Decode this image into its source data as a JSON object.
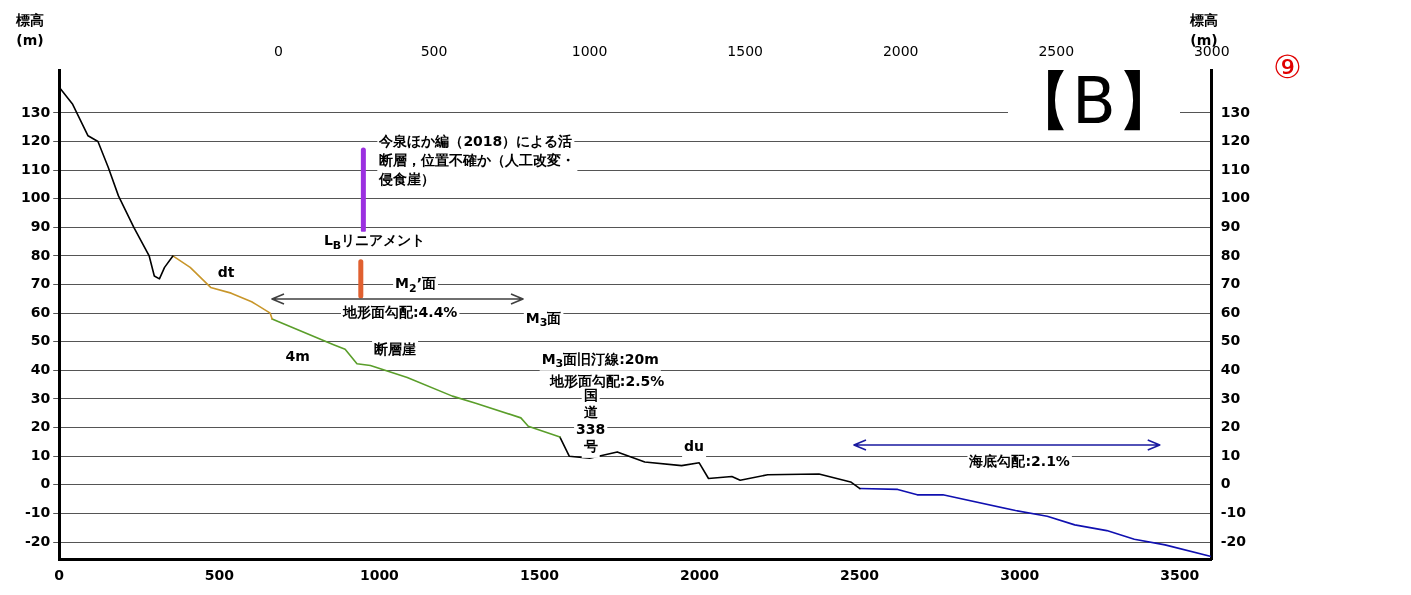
{
  "chart_data": {
    "type": "line",
    "title": "【B】",
    "ylabel": "標高\n(m)",
    "y2label": "標高\n(m)",
    "xlim": [
      0,
      3600
    ],
    "xticks": [
      0,
      500,
      1000,
      1500,
      2000,
      2500,
      3000,
      3500
    ],
    "x2lim": [
      -705,
      3000
    ],
    "x2ticks": [
      0,
      500,
      1000,
      1500,
      2000,
      2500,
      3000
    ],
    "ylim": [
      -26,
      145
    ],
    "yticks": [
      -20,
      -10,
      0,
      10,
      20,
      30,
      40,
      50,
      60,
      70,
      80,
      90,
      100,
      110,
      120,
      130
    ],
    "y2lim": [
      -26,
      145
    ],
    "y2ticks": [
      -20,
      -10,
      0,
      10,
      20,
      30,
      40,
      50,
      60,
      70,
      80,
      90,
      100,
      110,
      120,
      130
    ],
    "grid": "y",
    "marker": "none",
    "line_style": "solid",
    "series": [
      {
        "color": "#000000",
        "x": [
          0,
          42,
          90,
          121,
          153,
          185,
          233,
          281,
          297,
          313,
          329,
          355
        ],
        "values": [
          139,
          133,
          122,
          120,
          111,
          101,
          90,
          80,
          73,
          72,
          76,
          80
        ]
      },
      {
        "color": "#c8962a",
        "x": [
          355,
          409,
          473,
          537,
          601,
          659,
          665
        ],
        "values": [
          80,
          76,
          69,
          67,
          64,
          60,
          58
        ]
      },
      {
        "color": "#5a9e2a",
        "x": [
          665,
          857,
          893,
          930,
          972,
          1087,
          1228,
          1301,
          1442,
          1465,
          1564
        ],
        "values": [
          58,
          49,
          47.4,
          42.3,
          41.7,
          37.5,
          31,
          28.5,
          23.4,
          20.5,
          16.7
        ]
      },
      {
        "color": "#000000",
        "x": [
          1564,
          1593,
          1657,
          1743,
          1829,
          1944,
          1999,
          2028,
          2101,
          2127,
          2213,
          2373,
          2472,
          2501
        ],
        "values": [
          16.7,
          10,
          9.3,
          11.5,
          8,
          6.7,
          7.7,
          2.2,
          2.9,
          1.6,
          3.5,
          3.8,
          1,
          -1.3
        ]
      },
      {
        "color": "#1010b0",
        "x": [
          2501,
          2619,
          2680,
          2760,
          2987,
          3086,
          3172,
          3272,
          3358,
          3454,
          3595
        ],
        "values": [
          -1.3,
          -1.6,
          -3.5,
          -3.5,
          -9,
          -11,
          -14,
          -16,
          -19,
          -21,
          -25
        ]
      },
      {
        "color": "#9b30e0",
        "x": [
          950,
          950
        ],
        "values": [
          89,
          117
        ]
      },
      {
        "color": "#e06030",
        "x": [
          942,
          942
        ],
        "values": [
          66,
          78
        ]
      }
    ],
    "annotations": [
      "今泉ほか編（2018）による活断層，位置不確か（人工改変・侵食崖）",
      "L$_{B}$リニアメント",
      "dt",
      "M$_{2}$’面",
      "地形面勾配:4.4%",
      "M$_{3}$面",
      "断層崖",
      "4m",
      "M$_{3}$面旧汀線:20m",
      "地形面勾配:2.5%",
      "国道338号",
      "du",
      "海底勾配:2.1%",
      "⑨"
    ]
  }
}
